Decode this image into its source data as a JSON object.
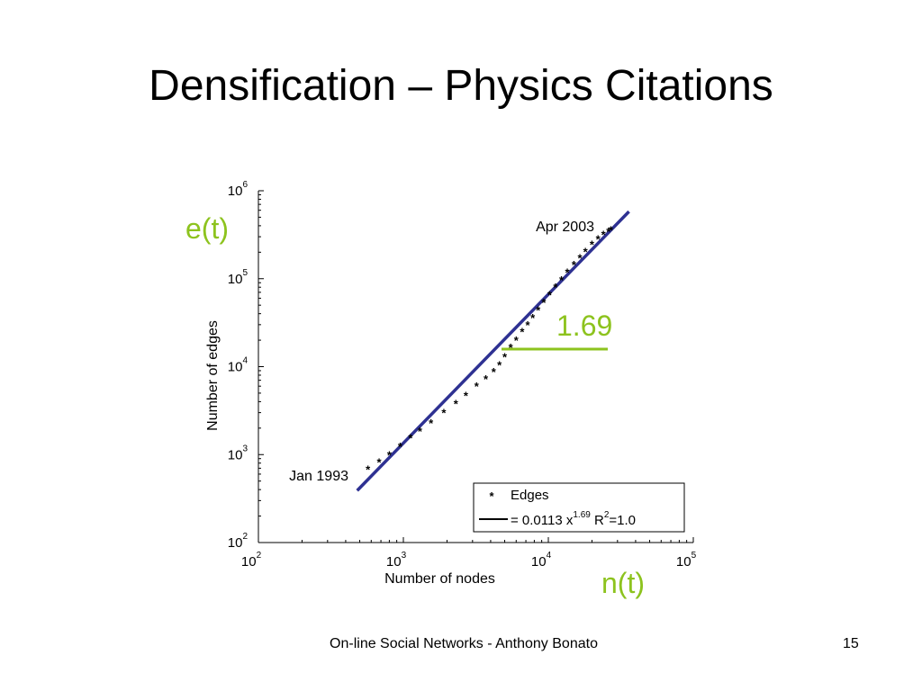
{
  "slide": {
    "title": "Densification – Physics Citations",
    "footer": "On-line Social Networks - Anthony Bonato",
    "page_number": "15"
  },
  "annotations": {
    "y_label": "e(t)",
    "x_label": "n(t)",
    "slope": "1.69",
    "color": "#8dc31e"
  },
  "colors": {
    "fit_line": "#2e3192",
    "points": "#000000"
  },
  "chart_data": {
    "type": "scatter",
    "title": "",
    "xlabel": "Number of nodes",
    "ylabel": "Number of edges",
    "xscale": "log",
    "yscale": "log",
    "xlim": [
      100,
      100000
    ],
    "ylim": [
      100,
      1000000
    ],
    "x_ticks": [
      {
        "base": "10",
        "exp": "2"
      },
      {
        "base": "10",
        "exp": "3"
      },
      {
        "base": "10",
        "exp": "4"
      },
      {
        "base": "10",
        "exp": "5"
      }
    ],
    "y_ticks": [
      {
        "base": "10",
        "exp": "2"
      },
      {
        "base": "10",
        "exp": "3"
      },
      {
        "base": "10",
        "exp": "4"
      },
      {
        "base": "10",
        "exp": "5"
      },
      {
        "base": "10",
        "exp": "6"
      }
    ],
    "annotations": [
      {
        "text": "Jan 1993",
        "x": 570,
        "y": 680
      },
      {
        "text": "Apr 2003",
        "x": 27000,
        "y": 350000
      }
    ],
    "legend": {
      "placement": "bottom-right",
      "entries": [
        {
          "marker": "*",
          "text": "Edges"
        },
        {
          "marker": "line",
          "prefix": "= 0.0113 x",
          "sup": "1.69",
          "middle": " R",
          "sup2": "2",
          "suffix": "=1.0"
        }
      ]
    },
    "series": [
      {
        "name": "Edges",
        "kind": "points",
        "x": [
          570,
          680,
          800,
          950,
          1120,
          1300,
          1550,
          1900,
          2300,
          2700,
          3200,
          3700,
          4200,
          4600,
          5000,
          5500,
          6000,
          6600,
          7200,
          7800,
          8500,
          9300,
          10200,
          11200,
          12300,
          13500,
          15000,
          16500,
          18000,
          20000,
          22000,
          24000,
          26000,
          27000
        ],
        "y": [
          680,
          820,
          1000,
          1250,
          1550,
          1850,
          2300,
          3000,
          3800,
          4700,
          6000,
          7300,
          8800,
          10500,
          13000,
          16500,
          20000,
          25000,
          30000,
          36000,
          44000,
          54000,
          66000,
          80000,
          97000,
          118000,
          145000,
          172000,
          205000,
          245000,
          285000,
          320000,
          345000,
          360000
        ]
      },
      {
        "name": "= 0.0113 x^1.69 R^2=1.0",
        "kind": "fit",
        "x": [
          480,
          36000
        ],
        "y": [
          390,
          580000
        ]
      }
    ]
  }
}
